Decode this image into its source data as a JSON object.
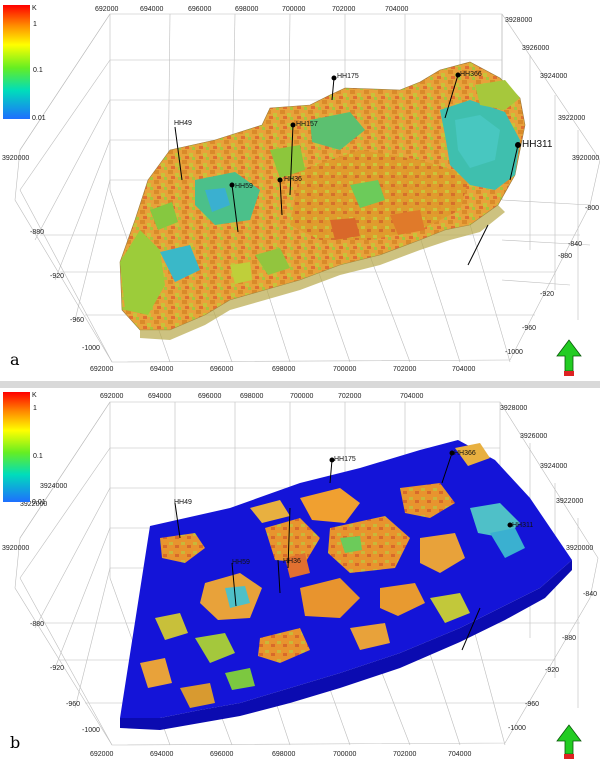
{
  "colorbar": {
    "title": "K",
    "labels": [
      "1",
      "0.1",
      "0.01"
    ],
    "colors": [
      "#ff0000",
      "#ff8c00",
      "#ffff00",
      "#7cfc00",
      "#00ff7f",
      "#00bfff",
      "#1e90ff"
    ]
  },
  "panel_a": {
    "letter": "a",
    "x_ticks_top": [
      "692000",
      "694000",
      "696000",
      "698000",
      "700000",
      "702000",
      "704000"
    ],
    "x_ticks_bottom": [
      "692000",
      "694000",
      "696000",
      "698000",
      "700000",
      "702000",
      "704000"
    ],
    "y_ticks_right": [
      "3928000",
      "3926000",
      "3924000",
      "3922000",
      "3920000"
    ],
    "y_ticks_left": [
      "3920000"
    ],
    "z_ticks_left": [
      "-880",
      "-920",
      "-960",
      "-1000"
    ],
    "z_ticks_right": [
      "-800",
      "-840",
      "-880",
      "-920",
      "-960",
      "-1000"
    ],
    "wells": [
      "HH49",
      "HH157",
      "HH175",
      "HH366",
      "HH311",
      "HH59",
      "HH36"
    ]
  },
  "panel_b": {
    "letter": "b",
    "x_ticks_top": [
      "692000",
      "694000",
      "696000",
      "698000",
      "700000",
      "702000",
      "704000"
    ],
    "x_ticks_bottom": [
      "692000",
      "694000",
      "696000",
      "698000",
      "700000",
      "702000",
      "704000"
    ],
    "y_ticks_right": [
      "3928000",
      "3926000",
      "3924000",
      "3922000",
      "3920000"
    ],
    "y_ticks_left": [
      "3924000",
      "3922000",
      "3920000"
    ],
    "z_ticks_left": [
      "-880",
      "-920",
      "-960",
      "-1000"
    ],
    "z_ticks_right": [
      "-840",
      "-880",
      "-920",
      "-960",
      "-1000"
    ],
    "wells": [
      "HH49",
      "HH175",
      "HH366",
      "HH311",
      "HH59",
      "HH36"
    ]
  },
  "north_arrow": {
    "icon": "north-arrow-icon"
  }
}
